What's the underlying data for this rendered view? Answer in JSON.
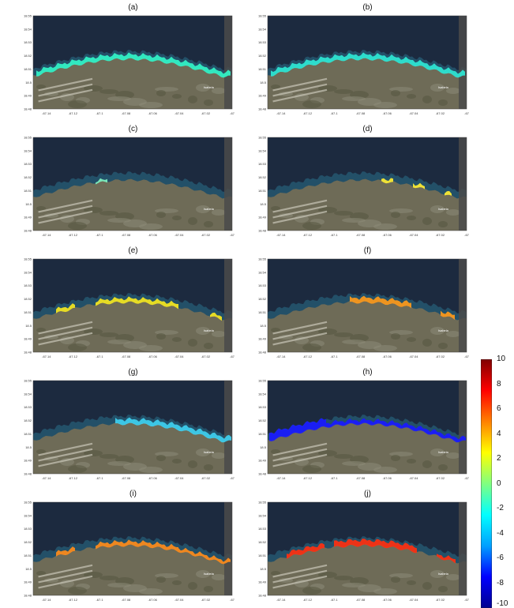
{
  "figure": {
    "panels": [
      {
        "id": "a",
        "label": "(a)"
      },
      {
        "id": "b",
        "label": "(b)"
      },
      {
        "id": "c",
        "label": "(c)"
      },
      {
        "id": "d",
        "label": "(d)"
      },
      {
        "id": "e",
        "label": "(e)"
      },
      {
        "id": "f",
        "label": "(f)"
      },
      {
        "id": "g",
        "label": "(g)"
      },
      {
        "id": "h",
        "label": "(h)"
      },
      {
        "id": "i",
        "label": "(i)"
      },
      {
        "id": "j",
        "label": "(j)"
      }
    ],
    "town_label": "Isabela",
    "y_tick_labels": [
      "18.55",
      "18.54",
      "18.53",
      "18.52",
      "18.51",
      "18.5",
      "18.49",
      "18.48"
    ],
    "x_tick_labels_left": [
      "-67.14",
      "-67.12",
      "-67.1",
      "-67.08",
      "-67.06",
      "-67.04",
      "-67.02",
      "-67"
    ],
    "x_tick_labels_right": [
      "-67.14",
      "-67.12",
      "-67.1",
      "-67.08",
      "-67.06",
      "-67.04",
      "-67.02",
      "-67"
    ]
  },
  "chart_data": {
    "type": "heatmap",
    "title": "",
    "xlabel": "",
    "ylabel": "",
    "xlim": [
      -67.15,
      -67.0
    ],
    "ylim": [
      18.48,
      18.55
    ],
    "colorbar": {
      "range": [
        -10,
        10
      ],
      "tick_labels": [
        "10",
        "8",
        "6",
        "4",
        "2",
        "0",
        "-2",
        "-4",
        "-6",
        "-8",
        "-10"
      ],
      "colormap": "jet",
      "colors": [
        "#00008f",
        "#0000ff",
        "#00a0ff",
        "#00ffff",
        "#80ff80",
        "#ffff00",
        "#ff8000",
        "#ff0000",
        "#800000"
      ]
    },
    "basemap_colors": {
      "ocean": "#1c2a3f",
      "reef": "#2a6f8a",
      "land": "#6e6b57"
    }
  },
  "panel_colors": {
    "a": "#33f5c8",
    "b": "#2fe8d5",
    "c": "#7ff2c0",
    "d": "#ffee33",
    "e": "#f6e81f",
    "f": "#ff9a1a",
    "g": "#3fd0f0",
    "h": "#1a1aff",
    "i": "#ff8c1a",
    "j": "#ff3010"
  }
}
